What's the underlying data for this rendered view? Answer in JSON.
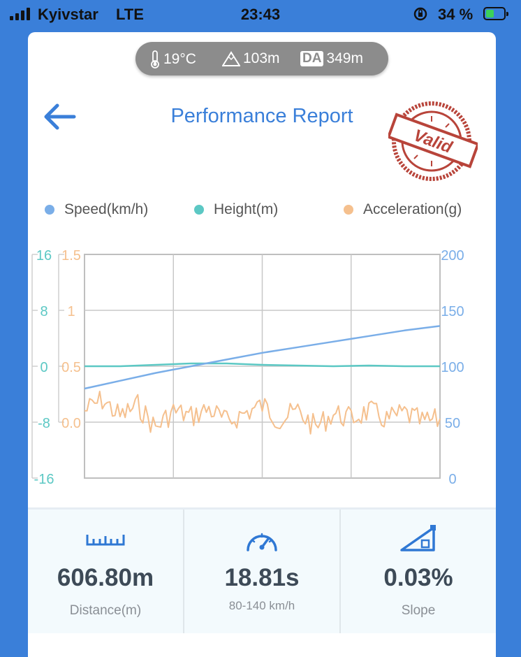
{
  "status_bar": {
    "carrier": "Kyivstar",
    "network": "LTE",
    "time": "23:43",
    "battery": "34 %"
  },
  "weather": {
    "temperature": "19°C",
    "altitude": "103m",
    "da_label": "DA",
    "density_altitude": "349m"
  },
  "header": {
    "title": "Performance Report",
    "stamp_text": "Valid"
  },
  "legend": [
    {
      "label": "Speed(km/h)",
      "color": "#7aaee8"
    },
    {
      "label": "Height(m)",
      "color": "#5cc8c4"
    },
    {
      "label": "Acceleration(g)",
      "color": "#f5c08e"
    }
  ],
  "chart_data": {
    "type": "line",
    "axes": {
      "height_ticks": [
        "16",
        "8",
        "0",
        "-8",
        "-16"
      ],
      "acceleration_ticks": [
        "1.5",
        "1",
        "0.5",
        "0.0"
      ],
      "speed_ticks": [
        "200",
        "150",
        "100",
        "50",
        "0"
      ],
      "height_range": [
        -16,
        16
      ],
      "acceleration_range": [
        -0.5,
        1.5
      ],
      "speed_range": [
        0,
        200
      ]
    },
    "grid": true,
    "x_range": [
      0,
      1
    ],
    "series": [
      {
        "name": "Speed(km/h)",
        "color": "#7aaee8",
        "x": [
          0,
          0.1,
          0.2,
          0.3,
          0.4,
          0.5,
          0.6,
          0.7,
          0.8,
          0.9,
          1.0
        ],
        "values": [
          80,
          87,
          94,
          100,
          106,
          112,
          117,
          122,
          127,
          132,
          136
        ]
      },
      {
        "name": "Height(m)",
        "color": "#5cc8c4",
        "x": [
          0,
          0.1,
          0.2,
          0.3,
          0.4,
          0.5,
          0.6,
          0.7,
          0.8,
          0.9,
          1.0
        ],
        "values": [
          0,
          0,
          0.2,
          0.4,
          0.4,
          0.2,
          0.1,
          0,
          0.1,
          0,
          0
        ]
      },
      {
        "name": "Acceleration(g)",
        "color": "#f5c08e",
        "x": [
          0,
          0.05,
          0.1,
          0.15,
          0.2,
          0.25,
          0.3,
          0.35,
          0.4,
          0.45,
          0.5,
          0.55,
          0.6,
          0.65,
          0.7,
          0.75,
          0.8,
          0.85,
          0.9,
          0.95,
          1.0
        ],
        "values": [
          0.1,
          0.2,
          0.05,
          0.15,
          -0.05,
          0.1,
          0.05,
          0.12,
          0.0,
          0.08,
          0.15,
          0.02,
          0.1,
          -0.05,
          0.08,
          0.03,
          0.1,
          0.02,
          0.08,
          0.0,
          0.02
        ]
      }
    ]
  },
  "stats": [
    {
      "value": "606.80m",
      "label": "Distance(m)",
      "icon": "ruler-icon"
    },
    {
      "value": "18.81s",
      "label": "80-140 km/h",
      "icon": "speedometer-icon"
    },
    {
      "value": "0.03%",
      "label": "Slope",
      "icon": "slope-icon"
    }
  ]
}
